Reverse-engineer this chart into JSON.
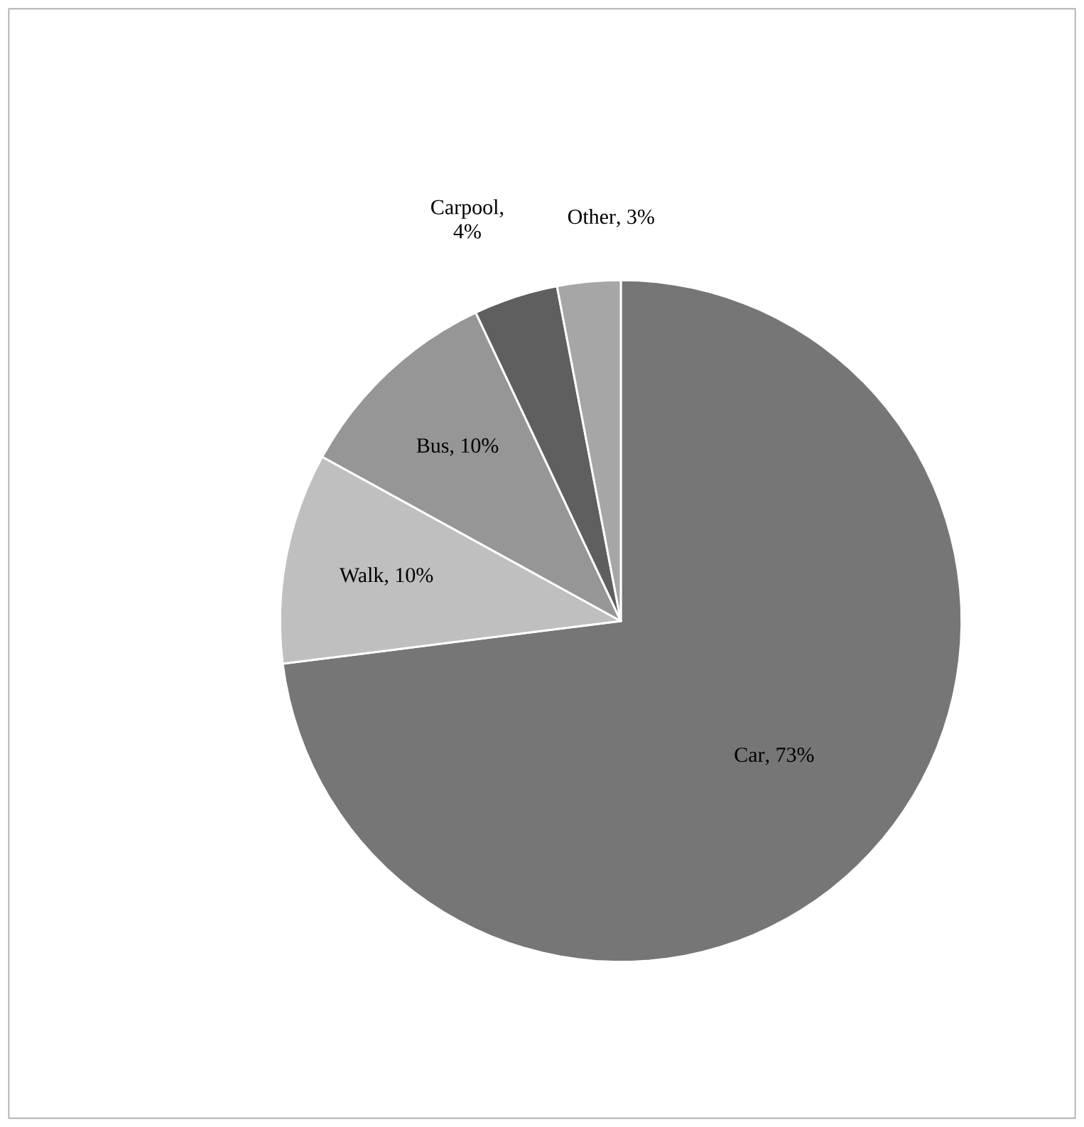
{
  "chart_data": {
    "type": "pie",
    "categories": [
      "Car",
      "Walk",
      "Bus",
      "Carpool",
      "Other"
    ],
    "values": [
      73,
      10,
      10,
      4,
      3
    ],
    "colors": [
      "#767676",
      "#bfbfbf",
      "#969696",
      "#5f5f5f",
      "#a6a6a6"
    ],
    "value_labels": [
      ", 73%",
      ", 10%",
      ", 10%",
      ", 4%",
      ", 3%"
    ]
  }
}
